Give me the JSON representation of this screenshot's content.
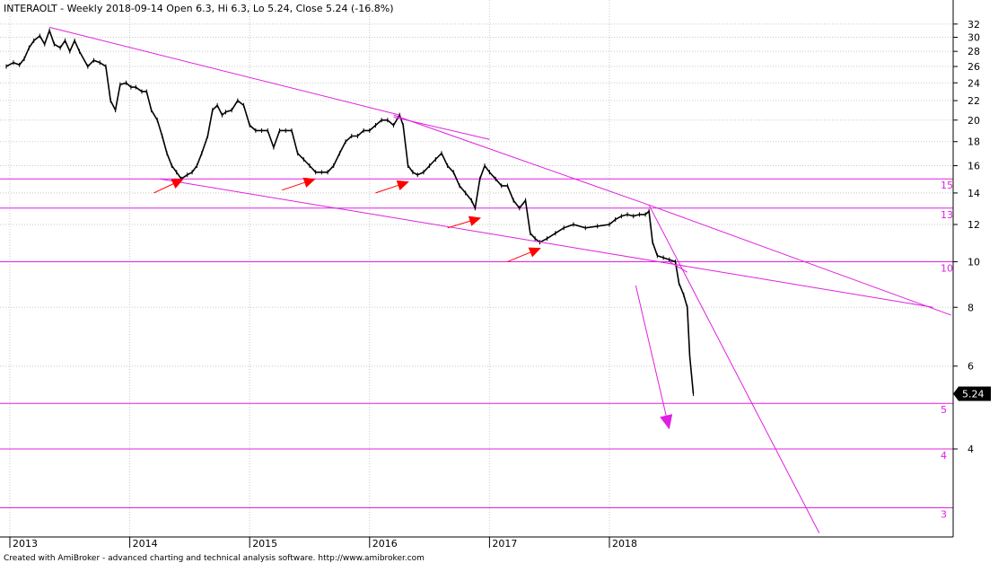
{
  "header": {
    "title": "INTERAOLT - Weekly 2018-09-14 Open 6.3, Hi 6.3, Lo 5.24, Close 5.24 (-16.8%)"
  },
  "footer": {
    "credit": "Created with AmiBroker - advanced charting and technical analysis software. http://www.amibroker.com"
  },
  "colors": {
    "price": "#000000",
    "annotation": "#e020e0",
    "arrow": "#ff0000",
    "grid": "#c8c8c8",
    "badge_bg": "#000000",
    "badge_text": "#ffffff"
  },
  "chart_data": {
    "type": "line",
    "scale": "log",
    "ylim": [
      2.6,
      36
    ],
    "y_ticks": [
      4,
      6,
      8,
      10,
      12,
      14,
      16,
      18,
      20,
      22,
      24,
      26,
      28,
      30,
      32
    ],
    "y_tick_labels": [
      "4",
      "6",
      "8",
      "10",
      "12",
      "14",
      "16",
      "18",
      "20",
      "22",
      "24",
      "26",
      "28",
      "30",
      "32"
    ],
    "x_ticks": [
      2013,
      2014,
      2015,
      2016,
      2017,
      2018
    ],
    "x_tick_labels": [
      "2013",
      "2014",
      "2015",
      "2016",
      "2017",
      "2018"
    ],
    "x_range": [
      2012.96,
      2020.85
    ],
    "grid": true,
    "last_value": "5.24",
    "series": [
      {
        "values_note": "",
        "points": [
          [
            2012.97,
            26.0
          ],
          [
            2013.03,
            26.5
          ],
          [
            2013.08,
            26.2
          ],
          [
            2013.12,
            27.0
          ],
          [
            2013.16,
            28.5
          ],
          [
            2013.2,
            29.5
          ],
          [
            2013.25,
            30.2
          ],
          [
            2013.29,
            29.0
          ],
          [
            2013.33,
            31.0
          ],
          [
            2013.37,
            29.0
          ],
          [
            2013.42,
            28.5
          ],
          [
            2013.46,
            29.5
          ],
          [
            2013.5,
            28.0
          ],
          [
            2013.54,
            29.5
          ],
          [
            2013.58,
            28.0
          ],
          [
            2013.65,
            26.0
          ],
          [
            2013.7,
            26.8
          ],
          [
            2013.75,
            26.5
          ],
          [
            2013.8,
            26.0
          ],
          [
            2013.84,
            22.0
          ],
          [
            2013.88,
            21.0
          ],
          [
            2013.92,
            23.8
          ],
          [
            2013.97,
            24.0
          ],
          [
            2014.01,
            23.5
          ],
          [
            2014.05,
            23.5
          ],
          [
            2014.1,
            23.0
          ],
          [
            2014.14,
            23.0
          ],
          [
            2014.18,
            21.0
          ],
          [
            2014.23,
            20.0
          ],
          [
            2014.27,
            18.5
          ],
          [
            2014.31,
            17.0
          ],
          [
            2014.35,
            16.0
          ],
          [
            2014.39,
            15.5
          ],
          [
            2014.43,
            15.0
          ],
          [
            2014.48,
            15.3
          ],
          [
            2014.52,
            15.5
          ],
          [
            2014.56,
            16.0
          ],
          [
            2014.6,
            17.0
          ],
          [
            2014.65,
            18.5
          ],
          [
            2014.69,
            21.0
          ],
          [
            2014.73,
            21.5
          ],
          [
            2014.77,
            20.5
          ],
          [
            2014.8,
            20.8
          ],
          [
            2014.85,
            21.0
          ],
          [
            2014.9,
            22.0
          ],
          [
            2014.95,
            21.5
          ],
          [
            2015.0,
            19.5
          ],
          [
            2015.05,
            19.0
          ],
          [
            2015.1,
            19.0
          ],
          [
            2015.15,
            19.0
          ],
          [
            2015.2,
            17.5
          ],
          [
            2015.25,
            19.0
          ],
          [
            2015.3,
            19.0
          ],
          [
            2015.35,
            19.0
          ],
          [
            2015.4,
            17.0
          ],
          [
            2015.45,
            16.5
          ],
          [
            2015.5,
            16.0
          ],
          [
            2015.55,
            15.5
          ],
          [
            2015.6,
            15.5
          ],
          [
            2015.65,
            15.5
          ],
          [
            2015.7,
            16.0
          ],
          [
            2015.75,
            17.0
          ],
          [
            2015.8,
            18.0
          ],
          [
            2015.85,
            18.5
          ],
          [
            2015.9,
            18.5
          ],
          [
            2015.95,
            19.0
          ],
          [
            2016.0,
            19.0
          ],
          [
            2016.05,
            19.5
          ],
          [
            2016.1,
            20.0
          ],
          [
            2016.15,
            20.0
          ],
          [
            2016.2,
            19.5
          ],
          [
            2016.25,
            20.5
          ],
          [
            2016.28,
            19.5
          ],
          [
            2016.32,
            16.0
          ],
          [
            2016.36,
            15.5
          ],
          [
            2016.4,
            15.3
          ],
          [
            2016.45,
            15.5
          ],
          [
            2016.5,
            16.0
          ],
          [
            2016.55,
            16.5
          ],
          [
            2016.6,
            17.0
          ],
          [
            2016.65,
            16.0
          ],
          [
            2016.7,
            15.5
          ],
          [
            2016.75,
            14.5
          ],
          [
            2016.8,
            14.0
          ],
          [
            2016.85,
            13.5
          ],
          [
            2016.88,
            13.0
          ],
          [
            2016.92,
            15.0
          ],
          [
            2016.96,
            16.0
          ],
          [
            2017.0,
            15.5
          ],
          [
            2017.05,
            15.0
          ],
          [
            2017.1,
            14.5
          ],
          [
            2017.15,
            14.5
          ],
          [
            2017.2,
            13.5
          ],
          [
            2017.25,
            13.0
          ],
          [
            2017.3,
            13.5
          ],
          [
            2017.34,
            11.5
          ],
          [
            2017.38,
            11.2
          ],
          [
            2017.42,
            11.0
          ],
          [
            2017.48,
            11.2
          ],
          [
            2017.55,
            11.5
          ],
          [
            2017.62,
            11.8
          ],
          [
            2017.7,
            12.0
          ],
          [
            2017.8,
            11.8
          ],
          [
            2017.9,
            11.9
          ],
          [
            2018.0,
            12.0
          ],
          [
            2018.05,
            12.3
          ],
          [
            2018.1,
            12.5
          ],
          [
            2018.15,
            12.6
          ],
          [
            2018.2,
            12.5
          ],
          [
            2018.25,
            12.6
          ],
          [
            2018.3,
            12.6
          ],
          [
            2018.33,
            12.8
          ],
          [
            2018.36,
            11.0
          ],
          [
            2018.4,
            10.3
          ],
          [
            2018.45,
            10.2
          ],
          [
            2018.5,
            10.1
          ],
          [
            2018.55,
            10.0
          ],
          [
            2018.58,
            9.0
          ],
          [
            2018.62,
            8.5
          ],
          [
            2018.65,
            8.0
          ],
          [
            2018.67,
            6.3
          ],
          [
            2018.7,
            5.24
          ]
        ]
      }
    ],
    "horizontal_levels": [
      {
        "value": 15,
        "label": "15"
      },
      {
        "value": 13,
        "label": "13"
      },
      {
        "value": 10,
        "label": "10"
      },
      {
        "value": 5,
        "label": "5"
      },
      {
        "value": 4,
        "label": "4"
      },
      {
        "value": 3,
        "label": "3"
      }
    ],
    "trend_lines": [
      {
        "from": [
          2013.33,
          31.5
        ],
        "to": [
          2016.25,
          20.5
        ]
      },
      {
        "from": [
          2016.2,
          20.5
        ],
        "to": [
          2018.33,
          13.2
        ]
      },
      {
        "from": [
          2018.33,
          13.2
        ],
        "to": [
          2020.85,
          7.7
        ]
      },
      {
        "from": [
          2016.2,
          20.3
        ],
        "to": [
          2017.0,
          18.2
        ]
      },
      {
        "from": [
          2014.25,
          15.0
        ],
        "to": [
          2020.7,
          8.0
        ]
      },
      {
        "from": [
          2018.33,
          13.2
        ],
        "to": [
          2019.75,
          2.65
        ]
      },
      {
        "from": [
          2018.65,
          9.5
        ],
        "to": [
          2018.5,
          10.0
        ]
      }
    ],
    "arrows_down": [
      {
        "from": [
          2018.22,
          8.9
        ],
        "to": [
          2018.5,
          4.4
        ]
      }
    ],
    "red_arrows": [
      {
        "from": [
          2014.2,
          14.0
        ],
        "to": [
          2014.45,
          15.0
        ]
      },
      {
        "from": [
          2015.27,
          14.2
        ],
        "to": [
          2015.55,
          15.0
        ]
      },
      {
        "from": [
          2016.05,
          14.0
        ],
        "to": [
          2016.33,
          14.8
        ]
      },
      {
        "from": [
          2016.65,
          11.8
        ],
        "to": [
          2016.93,
          12.4
        ]
      },
      {
        "from": [
          2017.15,
          10.0
        ],
        "to": [
          2017.43,
          10.7
        ]
      }
    ]
  }
}
